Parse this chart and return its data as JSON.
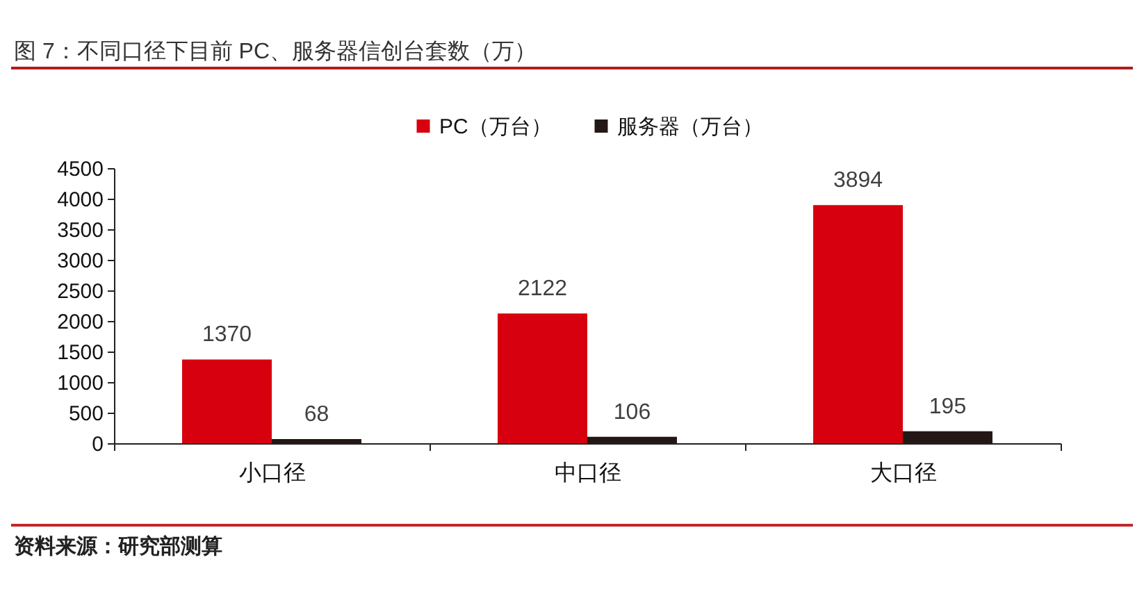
{
  "chart_data": {
    "type": "bar",
    "title": "图 7：不同口径下目前 PC、服务器信创台套数（万）",
    "categories": [
      "小口径",
      "中口径",
      "大口径"
    ],
    "series": [
      {
        "name": "PC（万台）",
        "color": "#d7000f",
        "values": [
          1370,
          2122,
          3894
        ]
      },
      {
        "name": "服务器（万台）",
        "color": "#231815",
        "values": [
          68,
          106,
          195
        ]
      }
    ],
    "ylim": [
      0,
      4500
    ],
    "yticks": [
      0,
      500,
      1000,
      1500,
      2000,
      2500,
      3000,
      3500,
      4000,
      4500
    ],
    "legend": "top",
    "data_labels": true,
    "annotations": [
      "资料来源：研究部测算"
    ]
  }
}
